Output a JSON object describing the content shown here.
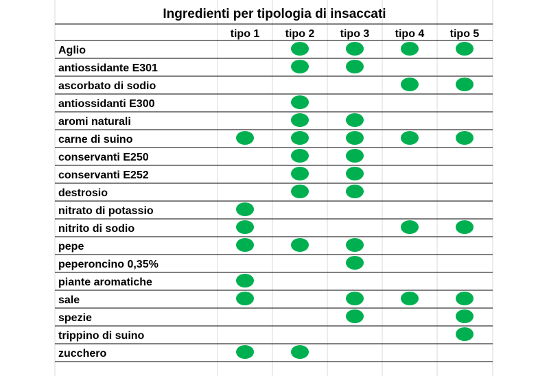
{
  "chart_data": {
    "type": "table",
    "title": "Ingredienti per tipologia di insaccati",
    "columns": [
      "tipo 1",
      "tipo 2",
      "tipo 3",
      "tipo 4",
      "tipo 5"
    ],
    "rows": [
      {
        "label": "Aglio",
        "values": [
          0,
          1,
          1,
          1,
          1
        ]
      },
      {
        "label": "antiossidante E301",
        "values": [
          0,
          1,
          1,
          0,
          0
        ]
      },
      {
        "label": "ascorbato di sodio",
        "values": [
          0,
          0,
          0,
          1,
          1
        ]
      },
      {
        "label": "antiossidanti E300",
        "values": [
          0,
          1,
          0,
          0,
          0
        ]
      },
      {
        "label": "aromi naturali",
        "values": [
          0,
          1,
          1,
          0,
          0
        ]
      },
      {
        "label": "carne di suino",
        "values": [
          1,
          1,
          1,
          1,
          1
        ]
      },
      {
        "label": "conservanti E250",
        "values": [
          0,
          1,
          1,
          0,
          0
        ]
      },
      {
        "label": "conservanti E252",
        "values": [
          0,
          1,
          1,
          0,
          0
        ]
      },
      {
        "label": "destrosio",
        "values": [
          0,
          1,
          1,
          0,
          0
        ]
      },
      {
        "label": "nitrato di potassio",
        "values": [
          1,
          0,
          0,
          0,
          0
        ]
      },
      {
        "label": "nitrito di sodio",
        "values": [
          1,
          0,
          0,
          1,
          1
        ]
      },
      {
        "label": "pepe",
        "values": [
          1,
          1,
          1,
          0,
          0
        ]
      },
      {
        "label": "peperoncino 0,35%",
        "values": [
          0,
          0,
          1,
          0,
          0
        ]
      },
      {
        "label": "piante aromatiche",
        "values": [
          1,
          0,
          0,
          0,
          0
        ]
      },
      {
        "label": "sale",
        "values": [
          1,
          0,
          1,
          1,
          1
        ]
      },
      {
        "label": "spezie",
        "values": [
          0,
          0,
          1,
          0,
          1
        ]
      },
      {
        "label": "trippino di suino",
        "values": [
          0,
          0,
          0,
          0,
          1
        ]
      },
      {
        "label": "zucchero",
        "values": [
          1,
          1,
          0,
          0,
          0
        ]
      }
    ],
    "marker_color": "#00B050",
    "grid_color": "#D9D9D9",
    "line_color": "#000000"
  }
}
